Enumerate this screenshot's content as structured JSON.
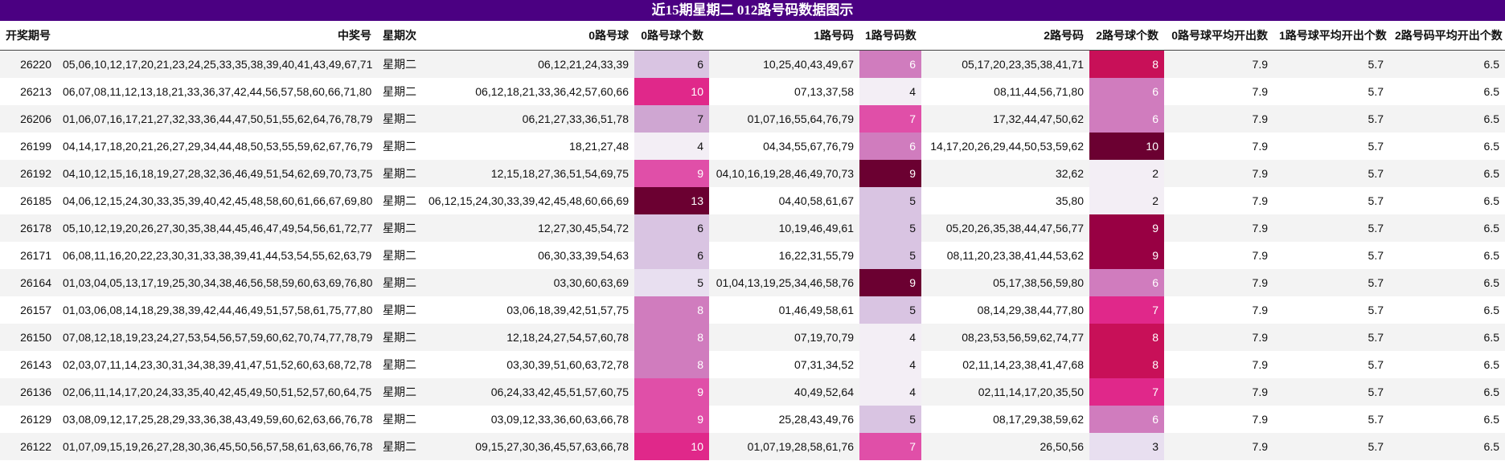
{
  "title": "近15期星期二 012路号码数据图示",
  "headers": [
    "开奖期号",
    "中奖号",
    "星期次",
    "0路号球",
    "0路号球个数",
    "1路号码",
    "1路号码数",
    "2路号码",
    "2路号球个数",
    "0路号球平均开出数",
    "1路号球平均开出个数",
    "2路号码平均开出个数"
  ],
  "colors": {
    "title_bg": "#4b0082",
    "scale": [
      "#f3eef5",
      "#e8dff0",
      "#d9c4e2",
      "#cfa6d2",
      "#d07cbe",
      "#e04fa8",
      "#e0288a",
      "#c81058",
      "#980043",
      "#6b0031"
    ]
  },
  "rows": [
    {
      "period": "26220",
      "numbers": "05,06,10,12,17,20,21,23,24,25,33,35,38,39,40,41,43,49,67,71",
      "weekday": "星期二",
      "r0": "06,12,21,24,33,39",
      "c0": "6",
      "r1": "10,25,40,43,49,67",
      "c1": "6",
      "r2": "05,17,20,23,35,38,41,71",
      "c2": "8",
      "avg0": "7.9",
      "avg1": "5.7",
      "avg2": "6.5"
    },
    {
      "period": "26213",
      "numbers": "06,07,08,11,12,13,18,21,33,36,37,42,44,56,57,58,60,66,71,80",
      "weekday": "星期二",
      "r0": "06,12,18,21,33,36,42,57,60,66",
      "c0": "10",
      "r1": "07,13,37,58",
      "c1": "4",
      "r2": "08,11,44,56,71,80",
      "c2": "6",
      "avg0": "7.9",
      "avg1": "5.7",
      "avg2": "6.5"
    },
    {
      "period": "26206",
      "numbers": "01,06,07,16,17,21,27,32,33,36,44,47,50,51,55,62,64,76,78,79",
      "weekday": "星期二",
      "r0": "06,21,27,33,36,51,78",
      "c0": "7",
      "r1": "01,07,16,55,64,76,79",
      "c1": "7",
      "r2": "17,32,44,47,50,62",
      "c2": "6",
      "avg0": "7.9",
      "avg1": "5.7",
      "avg2": "6.5"
    },
    {
      "period": "26199",
      "numbers": "04,14,17,18,20,21,26,27,29,34,44,48,50,53,55,59,62,67,76,79",
      "weekday": "星期二",
      "r0": "18,21,27,48",
      "c0": "4",
      "r1": "04,34,55,67,76,79",
      "c1": "6",
      "r2": "14,17,20,26,29,44,50,53,59,62",
      "c2": "10",
      "avg0": "7.9",
      "avg1": "5.7",
      "avg2": "6.5"
    },
    {
      "period": "26192",
      "numbers": "04,10,12,15,16,18,19,27,28,32,36,46,49,51,54,62,69,70,73,75",
      "weekday": "星期二",
      "r0": "12,15,18,27,36,51,54,69,75",
      "c0": "9",
      "r1": "04,10,16,19,28,46,49,70,73",
      "c1": "9",
      "r2": "32,62",
      "c2": "2",
      "avg0": "7.9",
      "avg1": "5.7",
      "avg2": "6.5"
    },
    {
      "period": "26185",
      "numbers": "04,06,12,15,24,30,33,35,39,40,42,45,48,58,60,61,66,67,69,80",
      "weekday": "星期二",
      "r0": "06,12,15,24,30,33,39,42,45,48,60,66,69",
      "c0": "13",
      "r1": "04,40,58,61,67",
      "c1": "5",
      "r2": "35,80",
      "c2": "2",
      "avg0": "7.9",
      "avg1": "5.7",
      "avg2": "6.5"
    },
    {
      "period": "26178",
      "numbers": "05,10,12,19,20,26,27,30,35,38,44,45,46,47,49,54,56,61,72,77",
      "weekday": "星期二",
      "r0": "12,27,30,45,54,72",
      "c0": "6",
      "r1": "10,19,46,49,61",
      "c1": "5",
      "r2": "05,20,26,35,38,44,47,56,77",
      "c2": "9",
      "avg0": "7.9",
      "avg1": "5.7",
      "avg2": "6.5"
    },
    {
      "period": "26171",
      "numbers": "06,08,11,16,20,22,23,30,31,33,38,39,41,44,53,54,55,62,63,79",
      "weekday": "星期二",
      "r0": "06,30,33,39,54,63",
      "c0": "6",
      "r1": "16,22,31,55,79",
      "c1": "5",
      "r2": "08,11,20,23,38,41,44,53,62",
      "c2": "9",
      "avg0": "7.9",
      "avg1": "5.7",
      "avg2": "6.5"
    },
    {
      "period": "26164",
      "numbers": "01,03,04,05,13,17,19,25,30,34,38,46,56,58,59,60,63,69,76,80",
      "weekday": "星期二",
      "r0": "03,30,60,63,69",
      "c0": "5",
      "r1": "01,04,13,19,25,34,46,58,76",
      "c1": "9",
      "r2": "05,17,38,56,59,80",
      "c2": "6",
      "avg0": "7.9",
      "avg1": "5.7",
      "avg2": "6.5"
    },
    {
      "period": "26157",
      "numbers": "01,03,06,08,14,18,29,38,39,42,44,46,49,51,57,58,61,75,77,80",
      "weekday": "星期二",
      "r0": "03,06,18,39,42,51,57,75",
      "c0": "8",
      "r1": "01,46,49,58,61",
      "c1": "5",
      "r2": "08,14,29,38,44,77,80",
      "c2": "7",
      "avg0": "7.9",
      "avg1": "5.7",
      "avg2": "6.5"
    },
    {
      "period": "26150",
      "numbers": "07,08,12,18,19,23,24,27,53,54,56,57,59,60,62,70,74,77,78,79",
      "weekday": "星期二",
      "r0": "12,18,24,27,54,57,60,78",
      "c0": "8",
      "r1": "07,19,70,79",
      "c1": "4",
      "r2": "08,23,53,56,59,62,74,77",
      "c2": "8",
      "avg0": "7.9",
      "avg1": "5.7",
      "avg2": "6.5"
    },
    {
      "period": "26143",
      "numbers": "02,03,07,11,14,23,30,31,34,38,39,41,47,51,52,60,63,68,72,78",
      "weekday": "星期二",
      "r0": "03,30,39,51,60,63,72,78",
      "c0": "8",
      "r1": "07,31,34,52",
      "c1": "4",
      "r2": "02,11,14,23,38,41,47,68",
      "c2": "8",
      "avg0": "7.9",
      "avg1": "5.7",
      "avg2": "6.5"
    },
    {
      "period": "26136",
      "numbers": "02,06,11,14,17,20,24,33,35,40,42,45,49,50,51,52,57,60,64,75",
      "weekday": "星期二",
      "r0": "06,24,33,42,45,51,57,60,75",
      "c0": "9",
      "r1": "40,49,52,64",
      "c1": "4",
      "r2": "02,11,14,17,20,35,50",
      "c2": "7",
      "avg0": "7.9",
      "avg1": "5.7",
      "avg2": "6.5"
    },
    {
      "period": "26129",
      "numbers": "03,08,09,12,17,25,28,29,33,36,38,43,49,59,60,62,63,66,76,78",
      "weekday": "星期二",
      "r0": "03,09,12,33,36,60,63,66,78",
      "c0": "9",
      "r1": "25,28,43,49,76",
      "c1": "5",
      "r2": "08,17,29,38,59,62",
      "c2": "6",
      "avg0": "7.9",
      "avg1": "5.7",
      "avg2": "6.5"
    },
    {
      "period": "26122",
      "numbers": "01,07,09,15,19,26,27,28,30,36,45,50,56,57,58,61,63,66,76,78",
      "weekday": "星期二",
      "r0": "09,15,27,30,36,45,57,63,66,78",
      "c0": "10",
      "r1": "01,07,19,28,58,61,76",
      "c1": "7",
      "r2": "26,50,56",
      "c2": "3",
      "avg0": "7.9",
      "avg1": "5.7",
      "avg2": "6.5"
    }
  ]
}
